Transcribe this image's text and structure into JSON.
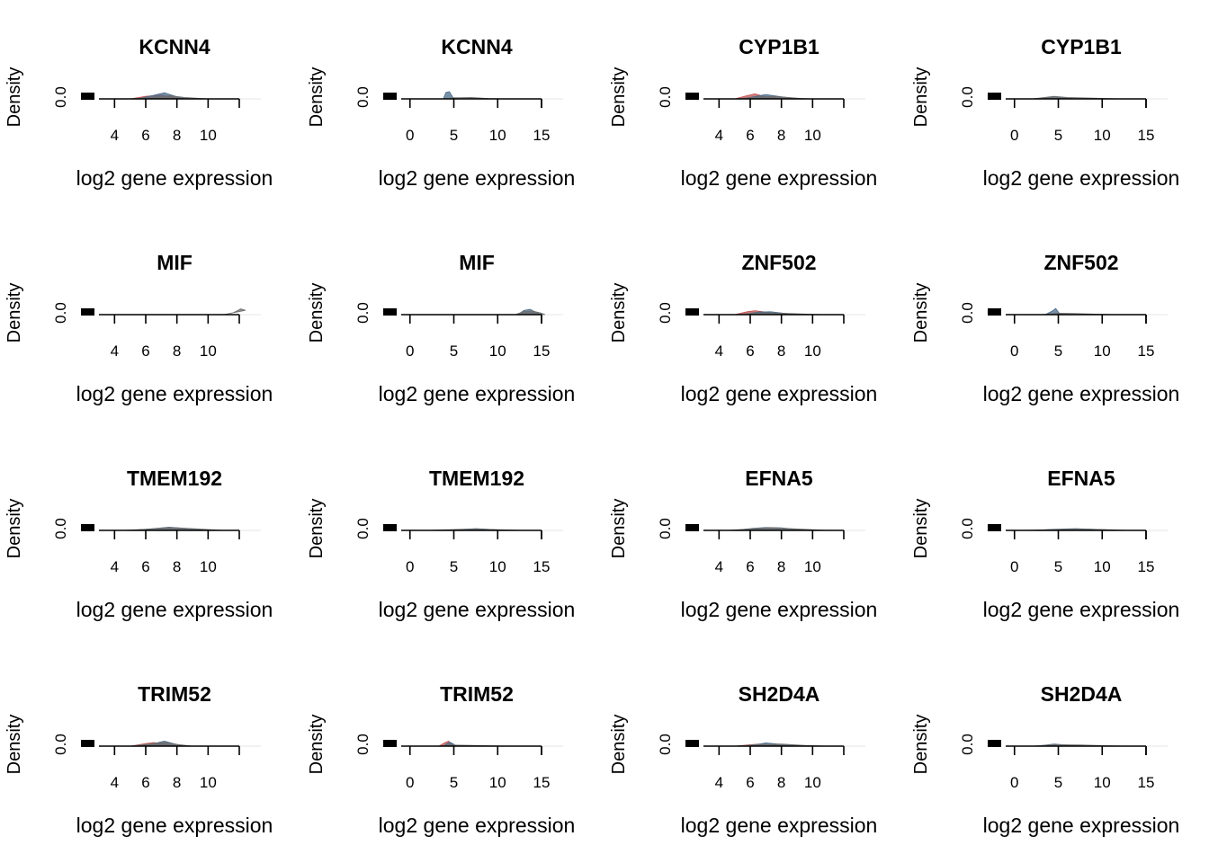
{
  "colors": {
    "series_red": "#c0504d",
    "series_blue": "#4a6b8a",
    "series_grey": "#6e6e6e",
    "axis": "#000000"
  },
  "chart_data": [
    {
      "type": "area",
      "title": "KCNN4",
      "xlabel": "log2 gene expression",
      "ylabel": "Density",
      "xticks": [
        4,
        6,
        8,
        10
      ],
      "ytick_label": "0.0",
      "xlim": [
        3,
        12
      ],
      "series": [
        {
          "color": "#c0504d",
          "points": [
            [
              5,
              0
            ],
            [
              6,
              0.35
            ],
            [
              7,
              0.55
            ],
            [
              8,
              0.1
            ],
            [
              9,
              0
            ]
          ]
        },
        {
          "color": "#4a6b8a",
          "points": [
            [
              5.5,
              0
            ],
            [
              6.5,
              0.5
            ],
            [
              7.2,
              0.85
            ],
            [
              8,
              0.3
            ],
            [
              8.6,
              0
            ]
          ]
        },
        {
          "color": "#6e6e6e",
          "points": [
            [
              5,
              0
            ],
            [
              6.5,
              0.2
            ],
            [
              7.5,
              0.45
            ],
            [
              8.5,
              0.2
            ],
            [
              10,
              0
            ]
          ]
        }
      ]
    },
    {
      "type": "area",
      "title": "KCNN4",
      "xlabel": "log2 gene expression",
      "ylabel": "Density",
      "xticks": [
        0,
        5,
        10,
        15
      ],
      "ytick_label": "0.0",
      "xlim": [
        -1,
        15
      ],
      "series": [
        {
          "color": "#4a6b8a",
          "points": [
            [
              3.8,
              0
            ],
            [
              4.1,
              0.9
            ],
            [
              4.5,
              1.0
            ],
            [
              4.9,
              0.2
            ],
            [
              5.2,
              0
            ]
          ]
        },
        {
          "color": "#6e6e6e",
          "points": [
            [
              4,
              0
            ],
            [
              5,
              0.15
            ],
            [
              7,
              0.2
            ],
            [
              9,
              0.05
            ],
            [
              11,
              0
            ]
          ]
        }
      ]
    },
    {
      "type": "area",
      "title": "CYP1B1",
      "xlabel": "log2 gene expression",
      "ylabel": "Density",
      "xticks": [
        4,
        6,
        8,
        10
      ],
      "ytick_label": "0.0",
      "xlim": [
        3,
        12
      ],
      "series": [
        {
          "color": "#c0504d",
          "points": [
            [
              5,
              0
            ],
            [
              5.8,
              0.45
            ],
            [
              6.3,
              0.7
            ],
            [
              7,
              0.3
            ],
            [
              8,
              0
            ]
          ]
        },
        {
          "color": "#4a6b8a",
          "points": [
            [
              5.5,
              0
            ],
            [
              6.5,
              0.4
            ],
            [
              7,
              0.6
            ],
            [
              7.8,
              0.35
            ],
            [
              9,
              0
            ]
          ]
        },
        {
          "color": "#6e6e6e",
          "points": [
            [
              5,
              0
            ],
            [
              6.5,
              0.25
            ],
            [
              7.5,
              0.35
            ],
            [
              9,
              0.1
            ],
            [
              10,
              0
            ]
          ]
        }
      ]
    },
    {
      "type": "area",
      "title": "CYP1B1",
      "xlabel": "log2 gene expression",
      "ylabel": "Density",
      "xticks": [
        0,
        5,
        10,
        15
      ],
      "ytick_label": "0.0",
      "xlim": [
        -1,
        15
      ],
      "series": [
        {
          "color": "#4a6b8a",
          "points": [
            [
              3,
              0
            ],
            [
              4.5,
              0.3
            ],
            [
              5.5,
              0.2
            ],
            [
              7,
              0
            ]
          ]
        },
        {
          "color": "#6e6e6e",
          "points": [
            [
              2,
              0
            ],
            [
              4.5,
              0.35
            ],
            [
              6,
              0.2
            ],
            [
              9,
              0.1
            ],
            [
              12,
              0
            ]
          ]
        }
      ]
    },
    {
      "type": "area",
      "title": "MIF",
      "xlabel": "log2 gene expression",
      "ylabel": "Density",
      "xticks": [
        4,
        6,
        8,
        10
      ],
      "ytick_label": "0.0",
      "xlim": [
        3,
        12
      ],
      "series": [
        {
          "color": "#6e6e6e",
          "points": [
            [
              11,
              0
            ],
            [
              11.6,
              0.25
            ],
            [
              12.1,
              0.8
            ],
            [
              12.4,
              0.6
            ]
          ]
        }
      ]
    },
    {
      "type": "area",
      "title": "MIF",
      "xlabel": "log2 gene expression",
      "ylabel": "Density",
      "xticks": [
        0,
        5,
        10,
        15
      ],
      "ytick_label": "0.0",
      "xlim": [
        -1,
        15
      ],
      "series": [
        {
          "color": "#4a6b8a",
          "points": [
            [
              12.3,
              0
            ],
            [
              13,
              0.6
            ],
            [
              13.7,
              0.75
            ],
            [
              14.4,
              0.3
            ],
            [
              15,
              0
            ]
          ]
        },
        {
          "color": "#6e6e6e",
          "points": [
            [
              12,
              0
            ],
            [
              13,
              0.45
            ],
            [
              14,
              0.5
            ],
            [
              15,
              0.2
            ],
            [
              15.4,
              0
            ]
          ]
        }
      ]
    },
    {
      "type": "area",
      "title": "ZNF502",
      "xlabel": "log2 gene expression",
      "ylabel": "Density",
      "xticks": [
        4,
        6,
        8,
        10
      ],
      "ytick_label": "0.0",
      "xlim": [
        3,
        12
      ],
      "series": [
        {
          "color": "#c0504d",
          "points": [
            [
              5,
              0
            ],
            [
              5.8,
              0.4
            ],
            [
              6.3,
              0.55
            ],
            [
              7,
              0.35
            ],
            [
              8,
              0
            ]
          ]
        },
        {
          "color": "#4a6b8a",
          "points": [
            [
              5.5,
              0
            ],
            [
              6.5,
              0.35
            ],
            [
              7.3,
              0.4
            ],
            [
              8.5,
              0.1
            ],
            [
              9,
              0
            ]
          ]
        },
        {
          "color": "#6e6e6e",
          "points": [
            [
              5,
              0
            ],
            [
              6.5,
              0.25
            ],
            [
              8,
              0.2
            ],
            [
              10,
              0.05
            ],
            [
              11,
              0
            ]
          ]
        }
      ]
    },
    {
      "type": "area",
      "title": "ZNF502",
      "xlabel": "log2 gene expression",
      "ylabel": "Density",
      "xticks": [
        0,
        5,
        10,
        15
      ],
      "ytick_label": "0.0",
      "xlim": [
        -1,
        15
      ],
      "series": [
        {
          "color": "#4a6b8a",
          "points": [
            [
              3.5,
              0
            ],
            [
              4.3,
              0.5
            ],
            [
              4.7,
              0.85
            ],
            [
              5.1,
              0.2
            ],
            [
              5.4,
              0
            ]
          ]
        },
        {
          "color": "#6e6e6e",
          "points": [
            [
              3,
              0
            ],
            [
              5,
              0.2
            ],
            [
              7,
              0.15
            ],
            [
              10,
              0.05
            ],
            [
              12,
              0
            ]
          ]
        }
      ]
    },
    {
      "type": "area",
      "title": "TMEM192",
      "xlabel": "log2 gene expression",
      "ylabel": "Density",
      "xticks": [
        4,
        6,
        8,
        10
      ],
      "ytick_label": "0.0",
      "xlim": [
        3,
        12
      ],
      "series": [
        {
          "color": "#4a6b8a",
          "points": [
            [
              5,
              0
            ],
            [
              6.5,
              0.25
            ],
            [
              7.5,
              0.45
            ],
            [
              8.5,
              0.3
            ],
            [
              10,
              0
            ]
          ]
        },
        {
          "color": "#6e6e6e",
          "points": [
            [
              4.5,
              0
            ],
            [
              6,
              0.15
            ],
            [
              7.5,
              0.4
            ],
            [
              9,
              0.25
            ],
            [
              11,
              0
            ]
          ]
        }
      ]
    },
    {
      "type": "area",
      "title": "TMEM192",
      "xlabel": "log2 gene expression",
      "ylabel": "Density",
      "xticks": [
        0,
        5,
        10,
        15
      ],
      "ytick_label": "0.0",
      "xlim": [
        -1,
        15
      ],
      "series": [
        {
          "color": "#4a6b8a",
          "points": [
            [
              3,
              0
            ],
            [
              5.5,
              0.1
            ],
            [
              7.5,
              0.25
            ],
            [
              10,
              0.08
            ],
            [
              12,
              0
            ]
          ]
        },
        {
          "color": "#6e6e6e",
          "points": [
            [
              2,
              0
            ],
            [
              5,
              0.12
            ],
            [
              7.5,
              0.2
            ],
            [
              10,
              0.1
            ],
            [
              13,
              0
            ]
          ]
        }
      ]
    },
    {
      "type": "area",
      "title": "EFNA5",
      "xlabel": "log2 gene expression",
      "ylabel": "Density",
      "xticks": [
        4,
        6,
        8,
        10
      ],
      "ytick_label": "0.0",
      "xlim": [
        3,
        12
      ],
      "series": [
        {
          "color": "#4a6b8a",
          "points": [
            [
              5,
              0
            ],
            [
              6.2,
              0.3
            ],
            [
              7,
              0.4
            ],
            [
              8,
              0.35
            ],
            [
              9.5,
              0
            ]
          ]
        },
        {
          "color": "#6e6e6e",
          "points": [
            [
              4.5,
              0
            ],
            [
              6,
              0.2
            ],
            [
              7.3,
              0.4
            ],
            [
              9,
              0.2
            ],
            [
              11,
              0
            ]
          ]
        }
      ]
    },
    {
      "type": "area",
      "title": "EFNA5",
      "xlabel": "log2 gene expression",
      "ylabel": "Density",
      "xticks": [
        0,
        5,
        10,
        15
      ],
      "ytick_label": "0.0",
      "xlim": [
        -1,
        15
      ],
      "series": [
        {
          "color": "#4a6b8a",
          "points": [
            [
              2,
              0
            ],
            [
              4.5,
              0.15
            ],
            [
              7,
              0.25
            ],
            [
              10,
              0.1
            ],
            [
              12,
              0
            ]
          ]
        },
        {
          "color": "#6e6e6e",
          "points": [
            [
              1,
              0
            ],
            [
              4.5,
              0.12
            ],
            [
              7.5,
              0.2
            ],
            [
              10.5,
              0.1
            ],
            [
              13,
              0
            ]
          ]
        }
      ]
    },
    {
      "type": "area",
      "title": "TRIM52",
      "xlabel": "log2 gene expression",
      "ylabel": "Density",
      "xticks": [
        4,
        6,
        8,
        10
      ],
      "ytick_label": "0.0",
      "xlim": [
        3,
        12
      ],
      "series": [
        {
          "color": "#c0504d",
          "points": [
            [
              5,
              0
            ],
            [
              6,
              0.35
            ],
            [
              6.5,
              0.5
            ],
            [
              7.2,
              0.3
            ],
            [
              8,
              0
            ]
          ]
        },
        {
          "color": "#4a6b8a",
          "points": [
            [
              5.5,
              0
            ],
            [
              6.6,
              0.4
            ],
            [
              7.2,
              0.7
            ],
            [
              7.8,
              0.35
            ],
            [
              8.4,
              0
            ]
          ]
        },
        {
          "color": "#6e6e6e",
          "points": [
            [
              5,
              0
            ],
            [
              6.5,
              0.35
            ],
            [
              7.2,
              0.55
            ],
            [
              8,
              0.25
            ],
            [
              9,
              0
            ]
          ]
        }
      ]
    },
    {
      "type": "area",
      "title": "TRIM52",
      "xlabel": "log2 gene expression",
      "ylabel": "Density",
      "xticks": [
        0,
        5,
        10,
        15
      ],
      "ytick_label": "0.0",
      "xlim": [
        -1,
        15
      ],
      "series": [
        {
          "color": "#c0504d",
          "points": [
            [
              3.3,
              0
            ],
            [
              4,
              0.5
            ],
            [
              4.4,
              0.7
            ],
            [
              4.8,
              0.3
            ],
            [
              5.2,
              0
            ]
          ]
        },
        {
          "color": "#4a6b8a",
          "points": [
            [
              3.8,
              0
            ],
            [
              4.5,
              0.55
            ],
            [
              4.9,
              0.35
            ],
            [
              5.3,
              0
            ]
          ]
        },
        {
          "color": "#6e6e6e",
          "points": [
            [
              3,
              0
            ],
            [
              5,
              0.15
            ],
            [
              7,
              0.1
            ],
            [
              10,
              0.03
            ],
            [
              12,
              0
            ]
          ]
        }
      ]
    },
    {
      "type": "area",
      "title": "SH2D4A",
      "xlabel": "log2 gene expression",
      "ylabel": "Density",
      "xticks": [
        4,
        6,
        8,
        10
      ],
      "ytick_label": "0.0",
      "xlim": [
        3,
        12
      ],
      "series": [
        {
          "color": "#c0504d",
          "points": [
            [
              5,
              0
            ],
            [
              6,
              0.2
            ],
            [
              6.6,
              0.3
            ],
            [
              7.5,
              0.15
            ],
            [
              8.5,
              0
            ]
          ]
        },
        {
          "color": "#4a6b8a",
          "points": [
            [
              5.5,
              0
            ],
            [
              6.6,
              0.3
            ],
            [
              7,
              0.45
            ],
            [
              8,
              0.25
            ],
            [
              9.5,
              0
            ]
          ]
        },
        {
          "color": "#6e6e6e",
          "points": [
            [
              5,
              0
            ],
            [
              6.5,
              0.2
            ],
            [
              8,
              0.3
            ],
            [
              9.5,
              0.1
            ],
            [
              11,
              0
            ]
          ]
        }
      ]
    },
    {
      "type": "area",
      "title": "SH2D4A",
      "xlabel": "log2 gene expression",
      "ylabel": "Density",
      "xticks": [
        0,
        5,
        10,
        15
      ],
      "ytick_label": "0.0",
      "xlim": [
        -1,
        15
      ],
      "series": [
        {
          "color": "#4a6b8a",
          "points": [
            [
              2.5,
              0
            ],
            [
              4.5,
              0.3
            ],
            [
              6,
              0.15
            ],
            [
              8,
              0
            ]
          ]
        },
        {
          "color": "#6e6e6e",
          "points": [
            [
              2,
              0
            ],
            [
              4.5,
              0.2
            ],
            [
              7.5,
              0.18
            ],
            [
              10,
              0.08
            ],
            [
              13,
              0
            ]
          ]
        }
      ]
    }
  ]
}
